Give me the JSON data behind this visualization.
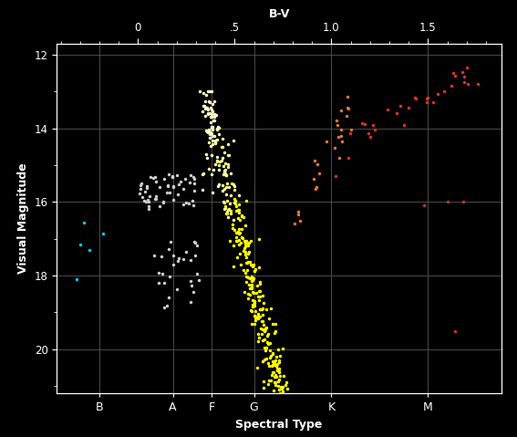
{
  "title_top": "B-V",
  "xlabel": "Spectral Type",
  "ylabel": "Visual Magnitude",
  "bg_color": "#000000",
  "grid_color": "#555555",
  "ylim_bottom": 21.2,
  "ylim_top": 11.7,
  "xlim_left": -0.42,
  "xlim_right": 1.88,
  "bv_ticks": [
    0.0,
    0.5,
    1.0,
    1.5
  ],
  "bv_tick_labels": [
    "0",
    ".5",
    "1.0",
    "1.5"
  ],
  "spectral_types": [
    "B",
    "A",
    "F",
    "G",
    "K",
    "M"
  ],
  "spectral_bv": [
    -0.2,
    0.18,
    0.38,
    0.6,
    1.0,
    1.5
  ],
  "ymajor_ticks": [
    12,
    14,
    16,
    18,
    20
  ],
  "seed": 42,
  "cyan_stars": {
    "color": "#00CCFF",
    "bv": [
      -0.32,
      -0.28,
      -0.25,
      -0.18,
      -0.3
    ],
    "mag": [
      18.1,
      16.55,
      17.3,
      16.85,
      17.15
    ]
  },
  "hb_color": "#CCCCCC",
  "hb_bv_range": [
    0.0,
    0.3
  ],
  "hb_mag_range": [
    15.25,
    16.2
  ],
  "hb_n": 55,
  "sg_color": "#CCCCCC",
  "sg_bv_range": [
    0.08,
    0.32
  ],
  "sg_mag_range": [
    17.0,
    18.9
  ],
  "sg_n": 30,
  "ms_n": 350,
  "ms_bv_range": [
    0.35,
    0.76
  ],
  "ms_mag_slope": 15.5,
  "ms_mag_intercept": 13.0,
  "ms_scatter": 0.45,
  "rgb_orange_n": 25,
  "rgb_orange_bv_range": [
    0.82,
    1.1
  ],
  "rgb_orange_color": "#E07838",
  "rgb_red_n": 30,
  "rgb_red_bv_range": [
    1.05,
    1.78
  ],
  "rgb_red_color": "#DD3322",
  "red_outliers_bv": [
    1.02,
    1.48,
    1.6,
    1.68,
    1.64
  ],
  "red_outliers_mag": [
    15.3,
    16.1,
    16.0,
    16.0,
    19.5
  ],
  "red_outlier_color": "#CC3322"
}
